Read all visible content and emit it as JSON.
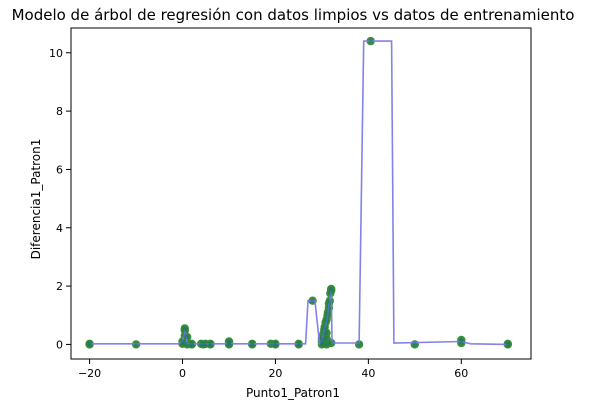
{
  "chart_data": {
    "type": "scatter",
    "title": "Modelo de árbol de regresión con datos limpios vs datos de entrenamiento",
    "xlabel": "Punto1_Patron1",
    "ylabel": "Diferencia1_Patron1",
    "xlim": [
      -24,
      75
    ],
    "ylim": [
      -0.5,
      10.85
    ],
    "xticks": [
      -20,
      0,
      20,
      40,
      60
    ],
    "yticks": [
      0,
      2,
      4,
      6,
      8,
      10
    ],
    "grid": false,
    "colors": {
      "points": "#2e8b2e",
      "points_overlay": "#1f6b8a",
      "line": "#7b7bea"
    },
    "series": [
      {
        "kind": "scatter",
        "points": [
          [
            -20,
            0.02
          ],
          [
            -20,
            0.0
          ],
          [
            -10,
            0.0
          ],
          [
            0,
            0.02
          ],
          [
            0,
            0.1
          ],
          [
            0.5,
            0.55
          ],
          [
            0.5,
            0.48
          ],
          [
            0.5,
            0.3
          ],
          [
            1,
            0.25
          ],
          [
            1,
            0.0
          ],
          [
            2,
            0.02
          ],
          [
            2,
            0.0
          ],
          [
            4,
            0.02
          ],
          [
            4.5,
            0.0
          ],
          [
            5,
            0.02
          ],
          [
            6,
            0.0
          ],
          [
            6,
            0.02
          ],
          [
            10,
            0.1
          ],
          [
            10,
            0.05
          ],
          [
            10,
            0.02
          ],
          [
            10,
            0.0
          ],
          [
            15,
            0.02
          ],
          [
            15,
            0.0
          ],
          [
            19,
            0.02
          ],
          [
            20,
            0.0
          ],
          [
            20,
            0.02
          ],
          [
            25,
            0.0
          ],
          [
            25,
            0.02
          ],
          [
            28,
            1.5
          ],
          [
            30,
            0.0
          ],
          [
            30,
            0.1
          ],
          [
            30,
            0.2
          ],
          [
            30.3,
            0.35
          ],
          [
            30.5,
            0.5
          ],
          [
            30.6,
            0.6
          ],
          [
            30.8,
            0.75
          ],
          [
            31,
            0.0
          ],
          [
            31,
            0.2
          ],
          [
            31,
            0.4
          ],
          [
            31,
            0.85
          ],
          [
            31.2,
            1.0
          ],
          [
            31.3,
            1.1
          ],
          [
            31.5,
            1.25
          ],
          [
            31.5,
            1.4
          ],
          [
            31.7,
            1.5
          ],
          [
            31.8,
            1.75
          ],
          [
            32,
            1.85
          ],
          [
            32,
            1.9
          ],
          [
            32,
            0.05
          ],
          [
            38,
            0.0
          ],
          [
            40.5,
            10.4
          ],
          [
            50,
            0.0
          ],
          [
            60,
            0.15
          ],
          [
            60,
            0.05
          ],
          [
            70,
            0.0
          ],
          [
            70,
            0.02
          ]
        ]
      },
      {
        "kind": "step-line",
        "points": [
          [
            -20,
            0.02
          ],
          [
            -1,
            0.02
          ],
          [
            0,
            0.1
          ],
          [
            0.3,
            0.3
          ],
          [
            0.5,
            0.5
          ],
          [
            0.8,
            0.25
          ],
          [
            1,
            0.02
          ],
          [
            9,
            0.02
          ],
          [
            10,
            0.05
          ],
          [
            11,
            0.02
          ],
          [
            26.5,
            0.02
          ],
          [
            27,
            1.5
          ],
          [
            28.5,
            1.5
          ],
          [
            29.5,
            0.02
          ],
          [
            30,
            0.15
          ],
          [
            30.5,
            0.5
          ],
          [
            31,
            0.8
          ],
          [
            31.5,
            1.3
          ],
          [
            32,
            1.85
          ],
          [
            32.2,
            0.05
          ],
          [
            37,
            0.05
          ],
          [
            38,
            0.02
          ],
          [
            39,
            10.4
          ],
          [
            45,
            10.4
          ],
          [
            45.5,
            0.05
          ],
          [
            60,
            0.1
          ],
          [
            62,
            0.02
          ],
          [
            70,
            0.0
          ]
        ]
      }
    ]
  }
}
